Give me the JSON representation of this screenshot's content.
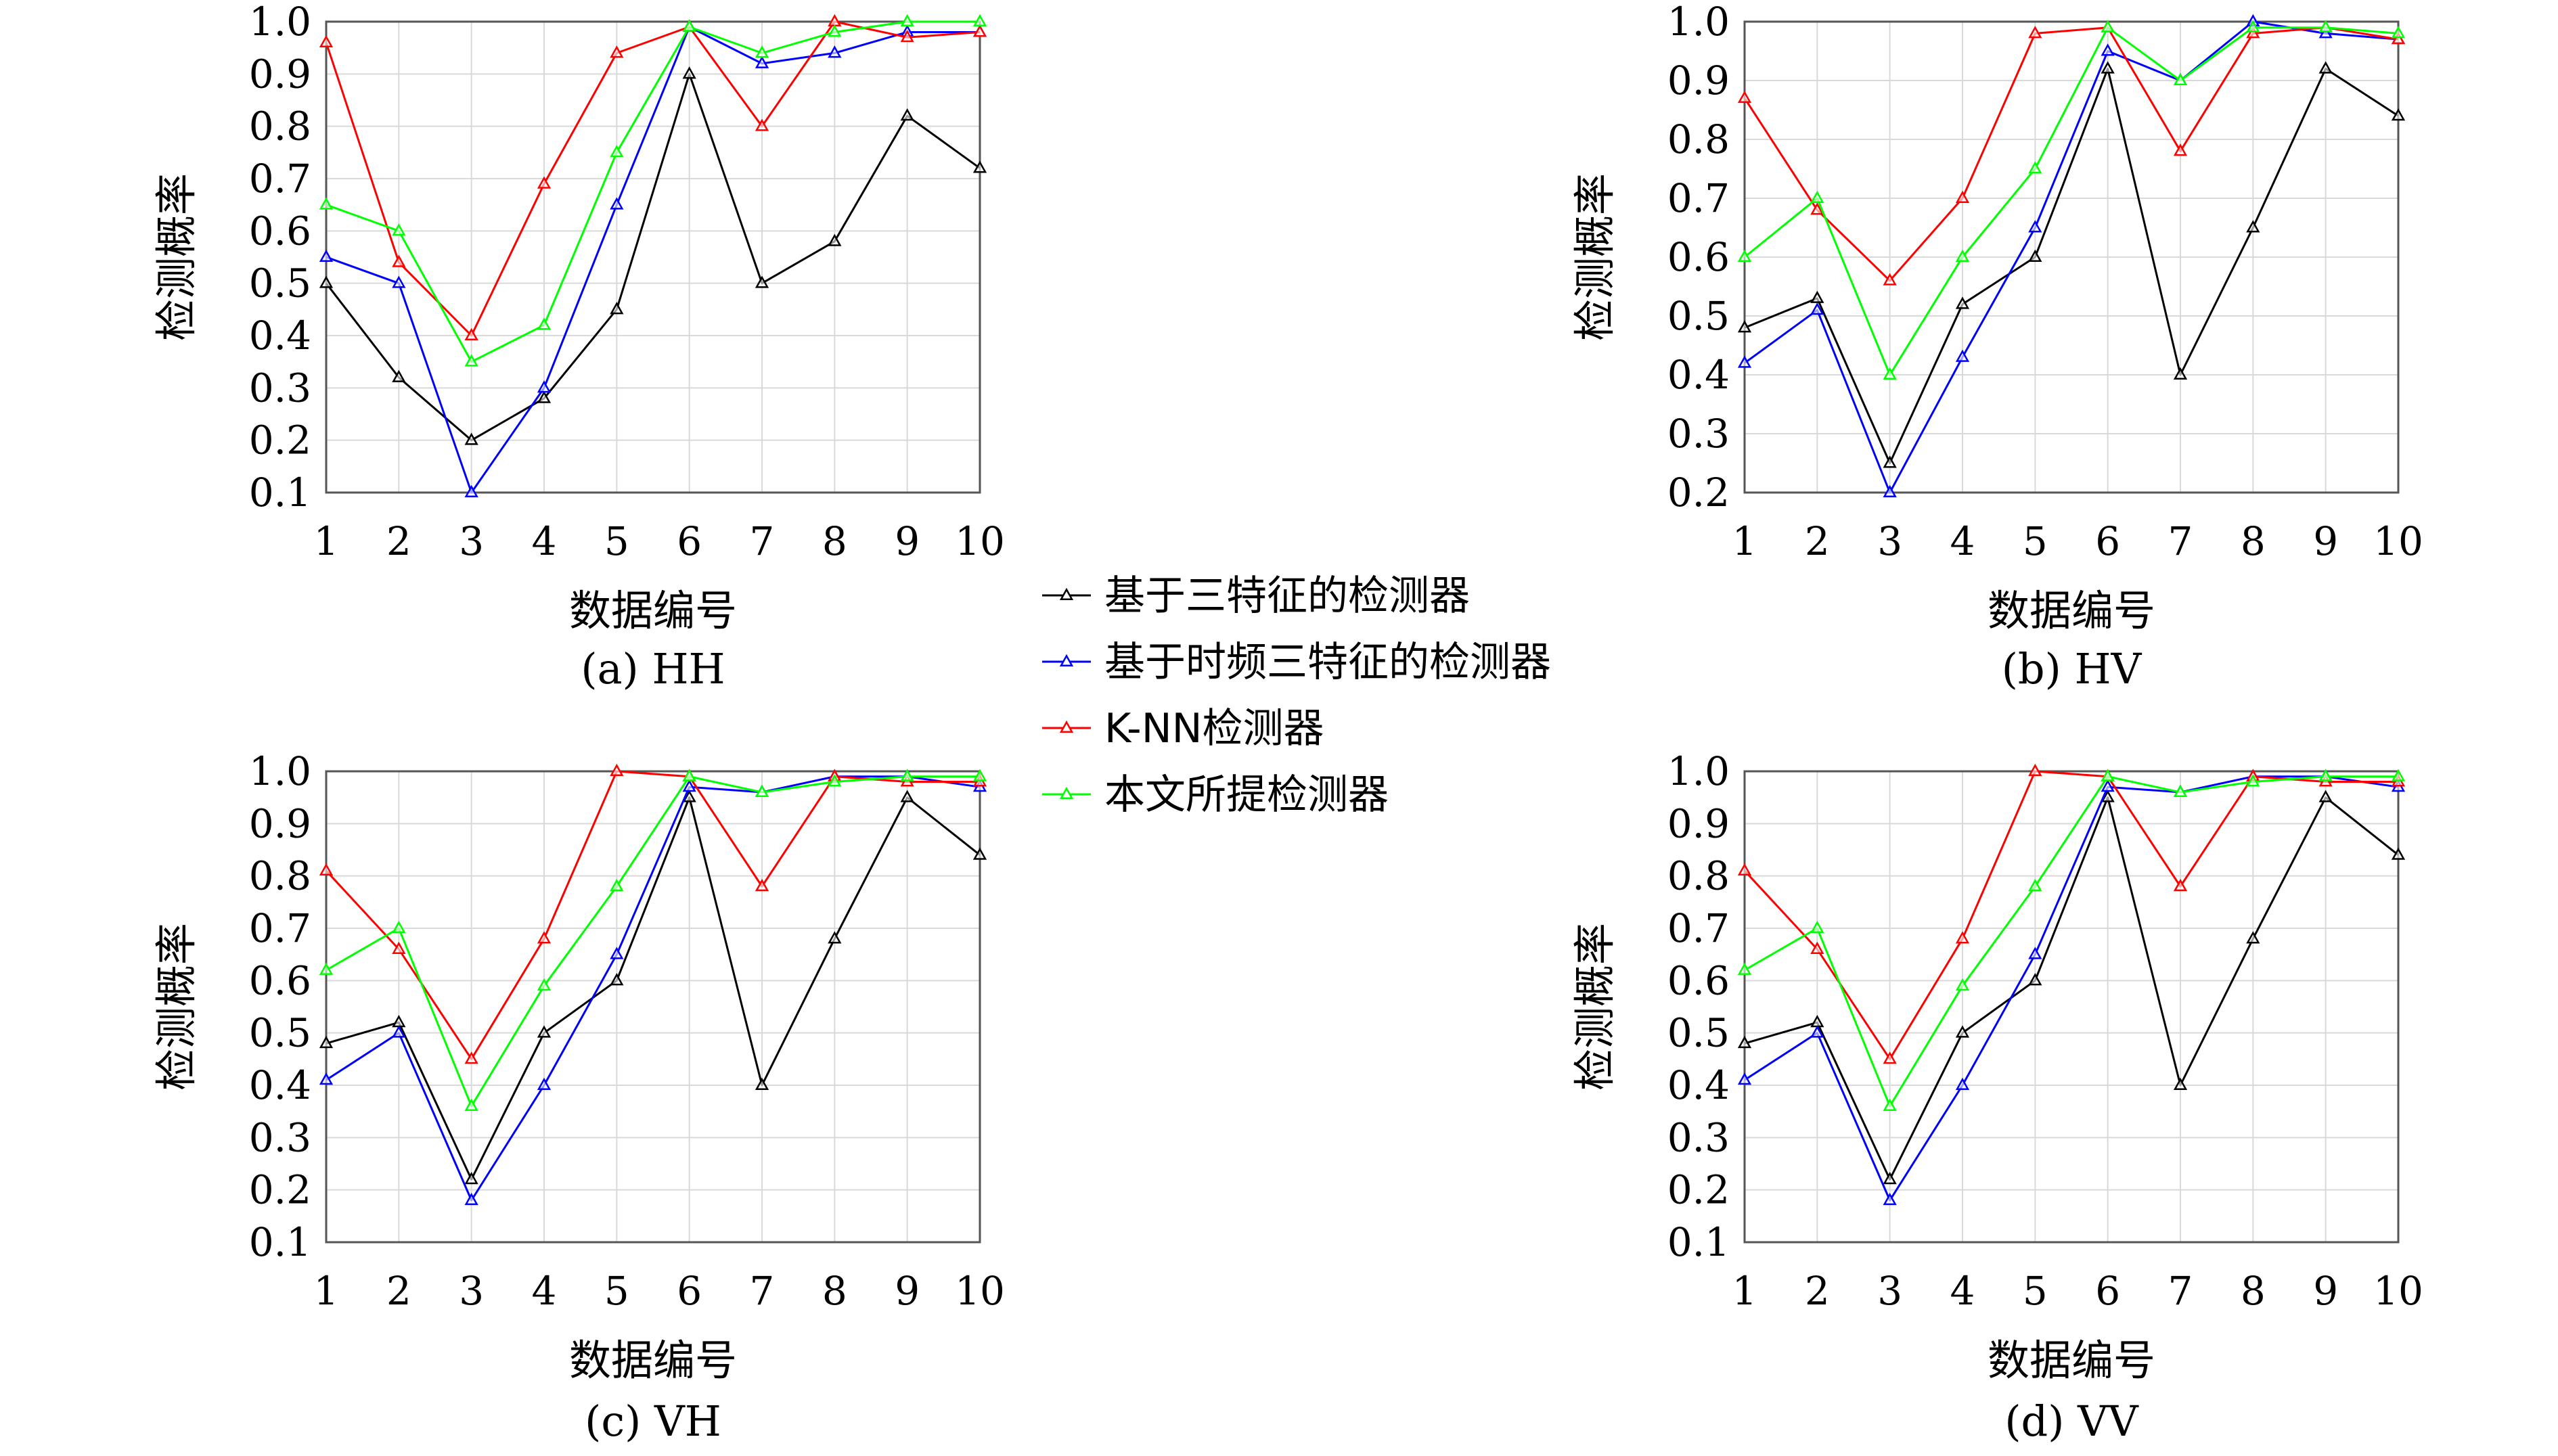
{
  "chart_data": [
    {
      "type": "line",
      "caption": "(a) HH",
      "xlabel": "数据编号",
      "ylabel": "检测概率",
      "x": [
        1,
        2,
        3,
        4,
        5,
        6,
        7,
        8,
        9,
        10
      ],
      "xlim": [
        1,
        10
      ],
      "ylim": [
        0.1,
        1.0
      ],
      "yticks": [
        "0.1",
        "0.2",
        "0.3",
        "0.4",
        "0.5",
        "0.6",
        "0.7",
        "0.8",
        "0.9",
        "1.0"
      ],
      "grid": true,
      "series": [
        {
          "name": "基于三特征的检测器",
          "color": "#000000",
          "values": [
            0.5,
            0.32,
            0.2,
            0.28,
            0.45,
            0.9,
            0.5,
            0.58,
            0.82,
            0.72
          ]
        },
        {
          "name": "基于时频三特征的检测器",
          "color": "#0000ff",
          "values": [
            0.55,
            0.5,
            0.1,
            0.3,
            0.65,
            0.99,
            0.92,
            0.94,
            0.98,
            0.98
          ]
        },
        {
          "name": "K-NN检测器",
          "color": "#ff0000",
          "values": [
            0.96,
            0.54,
            0.4,
            0.69,
            0.94,
            0.99,
            0.8,
            1.0,
            0.97,
            0.98
          ]
        },
        {
          "name": "本文所提检测器",
          "color": "#00ff00",
          "values": [
            0.65,
            0.6,
            0.35,
            0.42,
            0.75,
            0.99,
            0.94,
            0.98,
            1.0,
            1.0
          ]
        }
      ]
    },
    {
      "type": "line",
      "caption": "(b) HV",
      "xlabel": "数据编号",
      "ylabel": "检测概率",
      "x": [
        1,
        2,
        3,
        4,
        5,
        6,
        7,
        8,
        9,
        10
      ],
      "xlim": [
        1,
        10
      ],
      "ylim": [
        0.2,
        1.0
      ],
      "yticks": [
        "0.2",
        "0.3",
        "0.4",
        "0.5",
        "0.6",
        "0.7",
        "0.8",
        "0.9",
        "1.0"
      ],
      "grid": true,
      "series": [
        {
          "name": "基于三特征的检测器",
          "color": "#000000",
          "values": [
            0.48,
            0.53,
            0.25,
            0.52,
            0.6,
            0.92,
            0.4,
            0.65,
            0.92,
            0.84
          ]
        },
        {
          "name": "基于时频三特征的检测器",
          "color": "#0000ff",
          "values": [
            0.42,
            0.51,
            0.2,
            0.43,
            0.65,
            0.95,
            0.9,
            1.0,
            0.98,
            0.97
          ]
        },
        {
          "name": "K-NN检测器",
          "color": "#ff0000",
          "values": [
            0.87,
            0.68,
            0.56,
            0.7,
            0.98,
            0.99,
            0.78,
            0.98,
            0.99,
            0.97
          ]
        },
        {
          "name": "本文所提检测器",
          "color": "#00ff00",
          "values": [
            0.6,
            0.7,
            0.4,
            0.6,
            0.75,
            0.99,
            0.9,
            0.99,
            0.99,
            0.98
          ]
        }
      ]
    },
    {
      "type": "line",
      "caption": "(c) VH",
      "xlabel": "数据编号",
      "ylabel": "检测概率",
      "x": [
        1,
        2,
        3,
        4,
        5,
        6,
        7,
        8,
        9,
        10
      ],
      "xlim": [
        1,
        10
      ],
      "ylim": [
        0.1,
        1.0
      ],
      "yticks": [
        "0.1",
        "0.2",
        "0.3",
        "0.4",
        "0.5",
        "0.6",
        "0.7",
        "0.8",
        "0.9",
        "1.0"
      ],
      "grid": true,
      "series": [
        {
          "name": "基于三特征的检测器",
          "color": "#000000",
          "values": [
            0.48,
            0.52,
            0.22,
            0.5,
            0.6,
            0.95,
            0.4,
            0.68,
            0.95,
            0.84
          ]
        },
        {
          "name": "基于时频三特征的检测器",
          "color": "#0000ff",
          "values": [
            0.41,
            0.5,
            0.18,
            0.4,
            0.65,
            0.97,
            0.96,
            0.99,
            0.99,
            0.97
          ]
        },
        {
          "name": "K-NN检测器",
          "color": "#ff0000",
          "values": [
            0.81,
            0.66,
            0.45,
            0.68,
            1.0,
            0.99,
            0.78,
            0.99,
            0.98,
            0.98
          ]
        },
        {
          "name": "本文所提检测器",
          "color": "#00ff00",
          "values": [
            0.62,
            0.7,
            0.36,
            0.59,
            0.78,
            0.99,
            0.96,
            0.98,
            0.99,
            0.99
          ]
        }
      ]
    },
    {
      "type": "line",
      "caption": "(d) VV",
      "xlabel": "数据编号",
      "ylabel": "检测概率",
      "x": [
        1,
        2,
        3,
        4,
        5,
        6,
        7,
        8,
        9,
        10
      ],
      "xlim": [
        1,
        10
      ],
      "ylim": [
        0.1,
        1.0
      ],
      "yticks": [
        "0.1",
        "0.2",
        "0.3",
        "0.4",
        "0.5",
        "0.6",
        "0.7",
        "0.8",
        "0.9",
        "1.0"
      ],
      "grid": true,
      "series": [
        {
          "name": "基于三特征的检测器",
          "color": "#000000",
          "values": [
            0.48,
            0.52,
            0.22,
            0.5,
            0.6,
            0.95,
            0.4,
            0.68,
            0.95,
            0.84
          ]
        },
        {
          "name": "基于时频三特征的检测器",
          "color": "#0000ff",
          "values": [
            0.41,
            0.5,
            0.18,
            0.4,
            0.65,
            0.97,
            0.96,
            0.99,
            0.99,
            0.97
          ]
        },
        {
          "name": "K-NN检测器",
          "color": "#ff0000",
          "values": [
            0.81,
            0.66,
            0.45,
            0.68,
            1.0,
            0.99,
            0.78,
            0.99,
            0.98,
            0.98
          ]
        },
        {
          "name": "本文所提检测器",
          "color": "#00ff00",
          "values": [
            0.62,
            0.7,
            0.36,
            0.59,
            0.78,
            0.99,
            0.96,
            0.98,
            0.99,
            0.99
          ]
        }
      ]
    }
  ],
  "legend": {
    "placement": "center",
    "items": [
      {
        "label": "基于三特征的检测器",
        "color": "#000000"
      },
      {
        "label": "基于时频三特征的检测器",
        "color": "#0000ff"
      },
      {
        "label": "K-NN检测器",
        "color": "#ff0000"
      },
      {
        "label": "本文所提检测器",
        "color": "#00ff00"
      }
    ]
  }
}
